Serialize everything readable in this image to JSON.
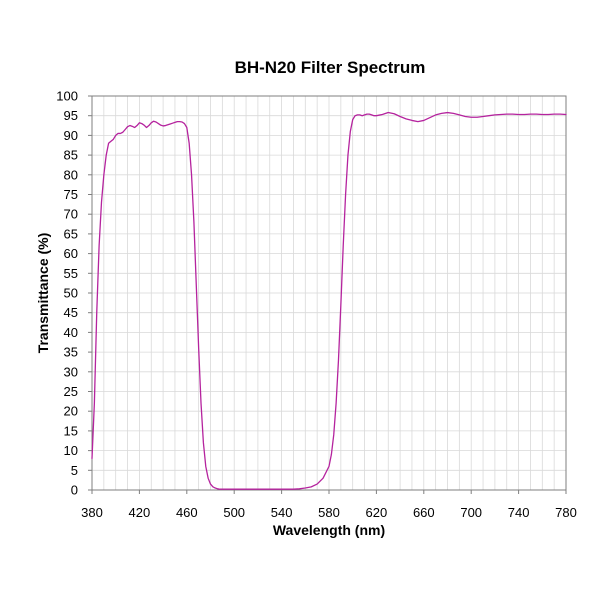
{
  "chart_data": {
    "type": "line",
    "title": "BH-N20 Filter Spectrum",
    "xlabel": "Wavelength (nm)",
    "ylabel": "Transmittance (%)",
    "xlim": [
      380,
      780
    ],
    "ylim": [
      0,
      100
    ],
    "x_ticks": [
      380,
      420,
      460,
      500,
      540,
      580,
      620,
      660,
      700,
      740,
      780
    ],
    "y_ticks": [
      0,
      5,
      10,
      15,
      20,
      25,
      30,
      35,
      40,
      45,
      50,
      55,
      60,
      65,
      70,
      75,
      80,
      85,
      90,
      95,
      100
    ],
    "grid": true,
    "legend": "none",
    "series": [
      {
        "color": "#b5239e",
        "x": [
          380,
          382,
          384,
          386,
          388,
          390,
          392,
          394,
          396,
          398,
          400,
          402,
          404,
          406,
          408,
          410,
          412,
          414,
          416,
          418,
          420,
          422,
          424,
          426,
          428,
          430,
          432,
          434,
          436,
          438,
          440,
          442,
          444,
          446,
          448,
          450,
          452,
          454,
          456,
          458,
          460,
          462,
          464,
          466,
          468,
          470,
          472,
          474,
          476,
          478,
          480,
          482,
          484,
          486,
          488,
          490,
          492,
          494,
          496,
          498,
          500,
          502,
          504,
          506,
          508,
          510,
          515,
          520,
          525,
          530,
          535,
          540,
          545,
          550,
          555,
          560,
          565,
          570,
          575,
          580,
          582,
          584,
          586,
          588,
          590,
          592,
          594,
          596,
          598,
          600,
          602,
          604,
          606,
          608,
          610,
          612,
          614,
          616,
          618,
          620,
          625,
          630,
          635,
          640,
          645,
          650,
          655,
          660,
          665,
          670,
          675,
          680,
          685,
          690,
          695,
          700,
          705,
          710,
          715,
          720,
          725,
          730,
          735,
          740,
          745,
          750,
          755,
          760,
          765,
          770,
          775,
          780
        ],
        "y": [
          8,
          22,
          45,
          62,
          73,
          80,
          85,
          88,
          88.5,
          89,
          90,
          90.5,
          90.5,
          90.8,
          91.5,
          92.2,
          92.5,
          92.3,
          92.0,
          92.5,
          93.2,
          93.0,
          92.6,
          92.0,
          92.5,
          93.2,
          93.6,
          93.4,
          93.0,
          92.6,
          92.4,
          92.5,
          92.7,
          92.9,
          93.1,
          93.3,
          93.5,
          93.5,
          93.4,
          93.0,
          92.0,
          88.0,
          80.0,
          68.0,
          52.0,
          36.0,
          22.0,
          12.0,
          6.0,
          3.0,
          1.5,
          0.8,
          0.5,
          0.3,
          0.2,
          0.2,
          0.2,
          0.2,
          0.2,
          0.2,
          0.2,
          0.2,
          0.2,
          0.2,
          0.2,
          0.2,
          0.2,
          0.2,
          0.2,
          0.2,
          0.2,
          0.2,
          0.2,
          0.2,
          0.3,
          0.5,
          0.8,
          1.5,
          3.0,
          6.0,
          9.0,
          14.0,
          22.0,
          33.0,
          47.0,
          62.0,
          75.0,
          85.0,
          91.0,
          94.0,
          95.0,
          95.2,
          95.2,
          95.0,
          95.2,
          95.4,
          95.4,
          95.2,
          95.0,
          95.0,
          95.3,
          95.8,
          95.5,
          94.8,
          94.2,
          93.8,
          93.5,
          93.8,
          94.5,
          95.2,
          95.6,
          95.8,
          95.6,
          95.2,
          94.8,
          94.6,
          94.6,
          94.8,
          95.0,
          95.2,
          95.3,
          95.4,
          95.4,
          95.3,
          95.3,
          95.4,
          95.4,
          95.3,
          95.3,
          95.4,
          95.4,
          95.3
        ]
      }
    ]
  }
}
